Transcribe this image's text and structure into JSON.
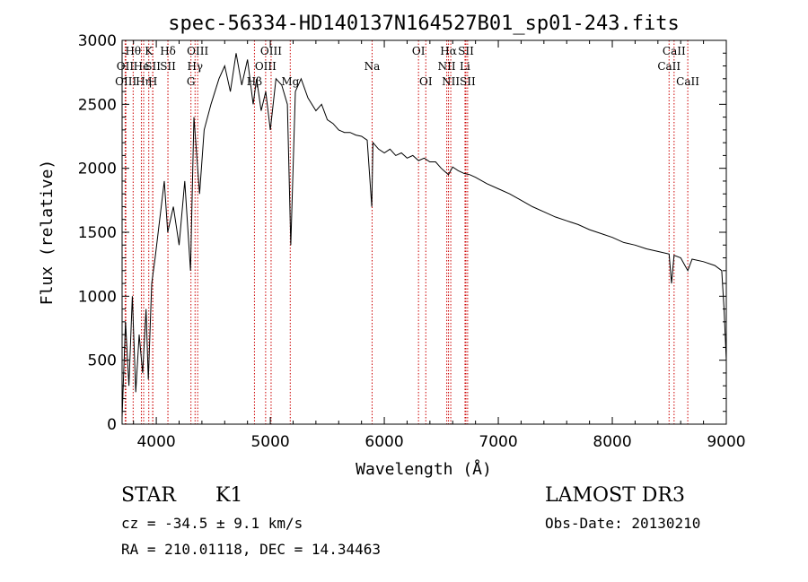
{
  "chart_data": {
    "type": "line",
    "title": "spec-56334-HD140137N164527B01_sp01-243.fits",
    "xlabel": "Wavelength (Å)",
    "ylabel": "Flux (relative)",
    "xlim": [
      3700,
      9000
    ],
    "ylim": [
      0,
      3000
    ],
    "xticks": [
      {
        "value": 4000,
        "label": "4000"
      },
      {
        "value": 5000,
        "label": "5000"
      },
      {
        "value": 6000,
        "label": "6000"
      },
      {
        "value": 7000,
        "label": "7000"
      },
      {
        "value": 8000,
        "label": "8000"
      },
      {
        "value": 9000,
        "label": "9000"
      }
    ],
    "yticks": [
      {
        "value": 0,
        "label": "0"
      },
      {
        "value": 500,
        "label": "500"
      },
      {
        "value": 1000,
        "label": "1000"
      },
      {
        "value": 1500,
        "label": "1500"
      },
      {
        "value": 2000,
        "label": "2000"
      },
      {
        "value": 2500,
        "label": "2500"
      },
      {
        "value": 3000,
        "label": "3000"
      }
    ],
    "line_color": "#000000",
    "marker_color": "#cc0000",
    "spectrum": {
      "x": [
        3700,
        3730,
        3760,
        3790,
        3820,
        3850,
        3880,
        3910,
        3930,
        3960,
        3990,
        4030,
        4070,
        4100,
        4150,
        4200,
        4250,
        4300,
        4330,
        4380,
        4420,
        4480,
        4550,
        4600,
        4650,
        4700,
        4750,
        4800,
        4850,
        4880,
        4920,
        4960,
        5000,
        5050,
        5100,
        5150,
        5180,
        5220,
        5270,
        5330,
        5400,
        5450,
        5500,
        5550,
        5600,
        5650,
        5700,
        5750,
        5800,
        5850,
        5890,
        5900,
        5950,
        6000,
        6050,
        6100,
        6150,
        6200,
        6250,
        6300,
        6350,
        6400,
        6450,
        6500,
        6563,
        6600,
        6650,
        6700,
        6750,
        6800,
        6900,
        7000,
        7100,
        7200,
        7300,
        7400,
        7500,
        7600,
        7700,
        7800,
        7900,
        8000,
        8100,
        8200,
        8300,
        8400,
        8498,
        8520,
        8542,
        8600,
        8662,
        8700,
        8800,
        8900,
        8960,
        8980,
        9000
      ],
      "y": [
        50,
        800,
        300,
        1000,
        250,
        700,
        400,
        900,
        350,
        1100,
        1300,
        1600,
        1900,
        1500,
        1700,
        1400,
        1900,
        1200,
        2400,
        1800,
        2300,
        2500,
        2700,
        2800,
        2600,
        2900,
        2650,
        2850,
        2500,
        2700,
        2450,
        2600,
        2300,
        2700,
        2650,
        2500,
        1400,
        2600,
        2700,
        2550,
        2450,
        2500,
        2380,
        2350,
        2300,
        2280,
        2280,
        2260,
        2250,
        2220,
        1700,
        2200,
        2150,
        2120,
        2150,
        2100,
        2120,
        2080,
        2100,
        2060,
        2080,
        2050,
        2050,
        2000,
        1950,
        2010,
        1980,
        1960,
        1950,
        1930,
        1880,
        1840,
        1800,
        1750,
        1700,
        1660,
        1620,
        1590,
        1560,
        1520,
        1490,
        1460,
        1420,
        1400,
        1370,
        1350,
        1330,
        1100,
        1320,
        1300,
        1200,
        1290,
        1270,
        1240,
        1200,
        900,
        500
      ]
    },
    "lines": [
      {
        "x": 3727,
        "label": "OII",
        "row": 1
      },
      {
        "x": 3733,
        "label": "OIII",
        "row": 2
      },
      {
        "x": 3797,
        "label": "Hθ",
        "row": 0
      },
      {
        "x": 3869,
        "label": "He",
        "row": 1
      },
      {
        "x": 3889,
        "label": "Hη",
        "row": 2
      },
      {
        "x": 3934,
        "label": "K",
        "row": 0
      },
      {
        "x": 3969,
        "label": "SII",
        "row": 1
      },
      {
        "x": 3969,
        "label": "H",
        "row": 2
      },
      {
        "x": 4102,
        "label": "Hδ",
        "row": 0
      },
      {
        "x": 4102,
        "label": "SII",
        "row": 1
      },
      {
        "x": 4304,
        "label": "G",
        "row": 2
      },
      {
        "x": 4340,
        "label": "Hγ",
        "row": 1
      },
      {
        "x": 4363,
        "label": "OIII",
        "row": 0
      },
      {
        "x": 4861,
        "label": "Hβ",
        "row": 2
      },
      {
        "x": 4959,
        "label": "OIII",
        "row": 1
      },
      {
        "x": 5007,
        "label": "OIII",
        "row": 0
      },
      {
        "x": 5175,
        "label": "Mg",
        "row": 2
      },
      {
        "x": 5893,
        "label": "Na",
        "row": 1
      },
      {
        "x": 6300,
        "label": "OI",
        "row": 0
      },
      {
        "x": 6364,
        "label": "OI",
        "row": 2
      },
      {
        "x": 6548,
        "label": "NII",
        "row": 1
      },
      {
        "x": 6563,
        "label": "Hα",
        "row": 0
      },
      {
        "x": 6583,
        "label": "NII",
        "row": 2
      },
      {
        "x": 6708,
        "label": "Li",
        "row": 1
      },
      {
        "x": 6716,
        "label": "SII",
        "row": 0
      },
      {
        "x": 6731,
        "label": "SII",
        "row": 2
      },
      {
        "x": 8498,
        "label": "CaII",
        "row": 1
      },
      {
        "x": 8542,
        "label": "CaII",
        "row": 0
      },
      {
        "x": 8662,
        "label": "CaII",
        "row": 2
      }
    ]
  },
  "info": {
    "class_label": "STAR",
    "subclass": "K1",
    "survey": "LAMOST DR3",
    "cz": "cz = -34.5 ± 9.1 km/s",
    "obs_date": "Obs-Date: 20130210",
    "coords": "RA = 210.01118, DEC =  14.34463"
  }
}
